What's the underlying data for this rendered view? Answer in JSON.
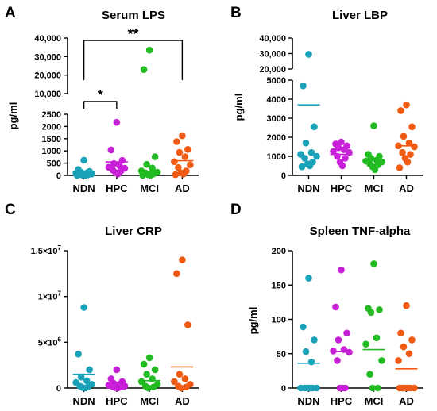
{
  "colors": {
    "NDN": "#1aa3b8",
    "HPC": "#c81fd8",
    "MCI": "#22bb22",
    "AD": "#f05a12"
  },
  "chart_data": [
    {
      "panel": "A",
      "type": "scatter",
      "title": "Serum LPS",
      "ylabel": "pg/ml",
      "categories": [
        "NDN",
        "HPC",
        "MCI",
        "AD"
      ],
      "axis_segments": [
        {
          "range": [
            0,
            2500
          ],
          "ticks": [
            0,
            500,
            1000,
            1500,
            2000,
            2500
          ],
          "tick_labels": [
            "0",
            "500",
            "1000",
            "1500",
            "2000",
            "2500"
          ]
        },
        {
          "range": [
            10000,
            40000
          ],
          "ticks": [
            10000,
            20000,
            30000,
            40000
          ],
          "tick_labels": [
            "10,000",
            "20,000",
            "30,000",
            "40,000"
          ]
        }
      ],
      "series": [
        {
          "category": "NDN",
          "mean": 150,
          "values": [
            620,
            240,
            160,
            120,
            100,
            80,
            60,
            40,
            20,
            5,
            0,
            0
          ]
        },
        {
          "category": "HPC",
          "mean": 550,
          "values": [
            2170,
            1040,
            610,
            480,
            400,
            330,
            290,
            220,
            170,
            120,
            60
          ]
        },
        {
          "category": "MCI",
          "mean": 160,
          "values": [
            33500,
            23000,
            760,
            450,
            300,
            180,
            130,
            100,
            60,
            30,
            10,
            0
          ]
        },
        {
          "category": "AD",
          "mean": 600,
          "values": [
            1620,
            1380,
            1060,
            940,
            760,
            560,
            430,
            320,
            180,
            100,
            60,
            30
          ]
        }
      ],
      "significance": [
        {
          "from": "NDN",
          "to": "HPC",
          "label": "*"
        },
        {
          "from": "NDN",
          "to": "AD",
          "label": "**"
        }
      ]
    },
    {
      "panel": "B",
      "type": "scatter",
      "title": "Liver LBP",
      "ylabel": "pg/ml",
      "categories": [
        "NDN",
        "HPC",
        "MCI",
        "AD"
      ],
      "axis_segments": [
        {
          "range": [
            0,
            5000
          ],
          "ticks": [
            0,
            1000,
            2000,
            3000,
            4000,
            5000
          ],
          "tick_labels": [
            "0",
            "1000",
            "2000",
            "3000",
            "4000",
            "5000"
          ]
        },
        {
          "range": [
            20000,
            40000
          ],
          "ticks": [
            20000,
            30000,
            40000
          ],
          "tick_labels": [
            "20,000",
            "30,000",
            "40,000"
          ]
        }
      ],
      "series": [
        {
          "category": "NDN",
          "mean": 3700,
          "values": [
            29500,
            4700,
            2550,
            1700,
            1200,
            1100,
            1000,
            900,
            700,
            600,
            500,
            450
          ]
        },
        {
          "category": "HPC",
          "mean": 1100,
          "values": [
            1750,
            1650,
            1550,
            1450,
            1350,
            1250,
            1200,
            1000,
            900,
            700,
            500
          ]
        },
        {
          "category": "MCI",
          "mean": 800,
          "values": [
            2600,
            1100,
            1000,
            900,
            800,
            750,
            700,
            600,
            550,
            450,
            300
          ]
        },
        {
          "category": "AD",
          "mean": 1550,
          "values": [
            3700,
            3400,
            2550,
            2050,
            1700,
            1550,
            1500,
            1200,
            1100,
            900,
            700,
            400
          ]
        }
      ]
    },
    {
      "panel": "C",
      "type": "scatter",
      "title": "Liver CRP",
      "ylabel": "",
      "categories": [
        "NDN",
        "HPC",
        "MCI",
        "AD"
      ],
      "yrange": [
        0,
        15000000
      ],
      "ticks": [
        0,
        5000000,
        10000000,
        15000000
      ],
      "tick_labels": [
        {
          "mantissa": "0",
          "exp": ""
        },
        {
          "mantissa": "5×10",
          "exp": "6"
        },
        {
          "mantissa": "1×10",
          "exp": "7"
        },
        {
          "mantissa": "1.5×10",
          "exp": "7"
        }
      ],
      "series": [
        {
          "category": "NDN",
          "mean": 1500000,
          "values": [
            8800000,
            3700000,
            2000000,
            1200000,
            800000,
            600000,
            400000,
            200000,
            100000,
            50000,
            0
          ]
        },
        {
          "category": "HPC",
          "mean": 400000,
          "values": [
            2000000,
            1000000,
            700000,
            500000,
            400000,
            300000,
            200000,
            150000,
            100000,
            50000,
            0
          ]
        },
        {
          "category": "MCI",
          "mean": 800000,
          "values": [
            3300000,
            2600000,
            2000000,
            1500000,
            1000000,
            700000,
            400000,
            200000,
            100000,
            0
          ]
        },
        {
          "category": "AD",
          "mean": 2300000,
          "values": [
            14000000,
            12500000,
            6900000,
            1500000,
            1000000,
            700000,
            400000,
            200000,
            100000,
            0
          ]
        }
      ]
    },
    {
      "panel": "D",
      "type": "scatter",
      "title": "Spleen TNF-alpha",
      "ylabel": "pg/ml",
      "categories": [
        "NDN",
        "HPC",
        "MCI",
        "AD"
      ],
      "yrange": [
        0,
        200
      ],
      "ticks": [
        0,
        50,
        100,
        150,
        200
      ],
      "tick_labels": [
        "0",
        "50",
        "100",
        "150",
        "200"
      ],
      "series": [
        {
          "category": "NDN",
          "mean": 36,
          "values": [
            160,
            89,
            70,
            53,
            38,
            0,
            0,
            0,
            0,
            0,
            0
          ]
        },
        {
          "category": "HPC",
          "mean": 53,
          "values": [
            172,
            118,
            80,
            70,
            56,
            54,
            52,
            40,
            0,
            0,
            0
          ]
        },
        {
          "category": "MCI",
          "mean": 56,
          "values": [
            181,
            116,
            114,
            110,
            73,
            64,
            40,
            20,
            0,
            0
          ]
        },
        {
          "category": "AD",
          "mean": 28,
          "values": [
            120,
            80,
            70,
            60,
            50,
            40,
            0,
            0,
            0,
            0,
            0,
            0
          ]
        }
      ]
    }
  ]
}
